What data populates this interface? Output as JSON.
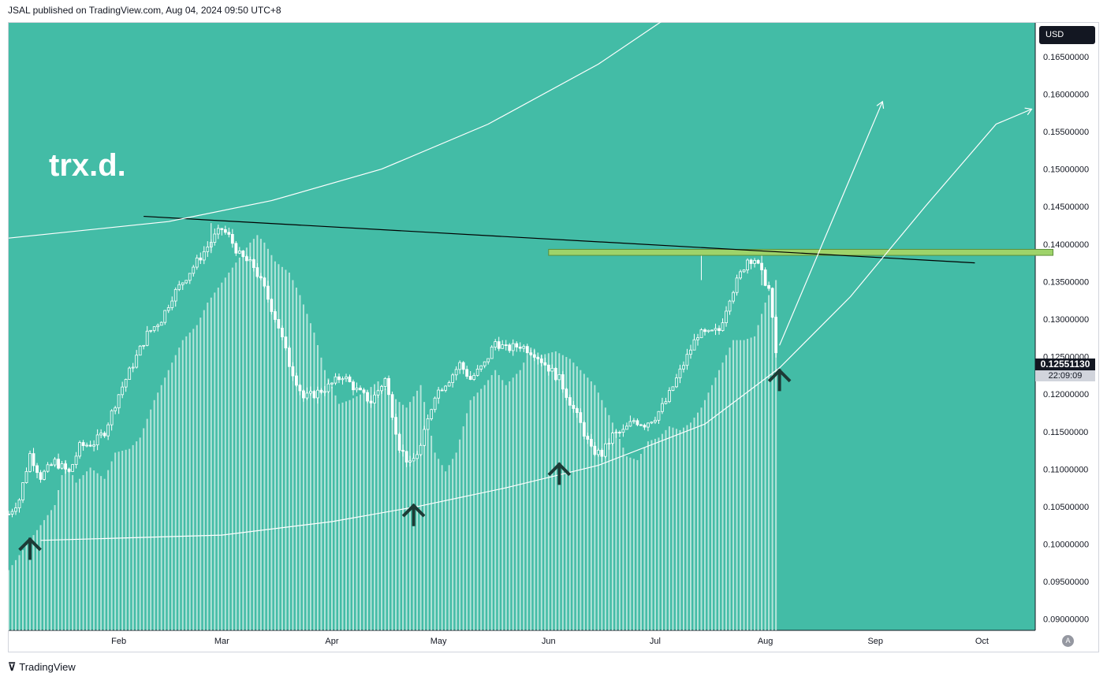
{
  "header": {
    "published": "JSAL published on TradingView.com, Aug 04, 2024 09:50 UTC+8"
  },
  "footer": {
    "brand": "TradingView",
    "logo": "tradingview-logo-icon"
  },
  "ticker_label": "trx.d.",
  "currency": "USD",
  "last_price": "0.12551130",
  "countdown": "22:09:09",
  "settings_icon": "A",
  "colors": {
    "background": "#43bca6",
    "candle": "#ffffff",
    "volume": "#e6f5f1",
    "arrow": "#1d3b36",
    "zone": "#9ed36a",
    "trendline": "#000000"
  },
  "chart_data": {
    "type": "candlestick",
    "title": "",
    "ylim": [
      0.0885,
      0.1695
    ],
    "x_range": [
      "2024-01-01",
      "2024-10-16"
    ],
    "x_ticks": [
      {
        "date": "2024-02-01",
        "label": "Feb"
      },
      {
        "date": "2024-03-01",
        "label": "Mar"
      },
      {
        "date": "2024-04-01",
        "label": "Apr"
      },
      {
        "date": "2024-05-01",
        "label": "May"
      },
      {
        "date": "2024-06-01",
        "label": "Jun"
      },
      {
        "date": "2024-07-01",
        "label": "Jul"
      },
      {
        "date": "2024-08-01",
        "label": "Aug"
      },
      {
        "date": "2024-09-01",
        "label": "Sep"
      },
      {
        "date": "2024-10-01",
        "label": "Oct"
      }
    ],
    "y_ticks": [
      "0.09000000",
      "0.09500000",
      "0.10000000",
      "0.10500000",
      "0.11000000",
      "0.11500000",
      "0.12000000",
      "0.12500000",
      "0.13000000",
      "0.13500000",
      "0.14000000",
      "0.14500000",
      "0.15000000",
      "0.15500000",
      "0.16000000",
      "0.16500000"
    ],
    "close_path": [
      [
        "2024-01-01",
        0.104
      ],
      [
        "2024-01-04",
        0.106
      ],
      [
        "2024-01-07",
        0.112
      ],
      [
        "2024-01-10",
        0.109
      ],
      [
        "2024-01-14",
        0.111
      ],
      [
        "2024-01-18",
        0.1095
      ],
      [
        "2024-01-21",
        0.113
      ],
      [
        "2024-01-25",
        0.1135
      ],
      [
        "2024-01-28",
        0.115
      ],
      [
        "2024-02-01",
        0.12
      ],
      [
        "2024-02-05",
        0.124
      ],
      [
        "2024-02-09",
        0.128
      ],
      [
        "2024-02-13",
        0.13
      ],
      [
        "2024-02-16",
        0.133
      ],
      [
        "2024-02-19",
        0.135
      ],
      [
        "2024-02-22",
        0.137
      ],
      [
        "2024-02-25",
        0.139
      ],
      [
        "2024-02-28",
        0.141
      ],
      [
        "2024-03-01",
        0.142
      ],
      [
        "2024-03-03",
        0.141
      ],
      [
        "2024-03-06",
        0.1385
      ],
      [
        "2024-03-10",
        0.137
      ],
      [
        "2024-03-13",
        0.134
      ],
      [
        "2024-03-17",
        0.129
      ],
      [
        "2024-03-20",
        0.124
      ],
      [
        "2024-03-24",
        0.1195
      ],
      [
        "2024-03-27",
        0.12
      ],
      [
        "2024-03-31",
        0.121
      ],
      [
        "2024-04-04",
        0.1225
      ],
      [
        "2024-04-08",
        0.1205
      ],
      [
        "2024-04-12",
        0.119
      ],
      [
        "2024-04-16",
        0.122
      ],
      [
        "2024-04-20",
        0.113
      ],
      [
        "2024-04-23",
        0.1105
      ],
      [
        "2024-04-26",
        0.113
      ],
      [
        "2024-04-30",
        0.12
      ],
      [
        "2024-05-04",
        0.122
      ],
      [
        "2024-05-07",
        0.124
      ],
      [
        "2024-05-10",
        0.122
      ],
      [
        "2024-05-14",
        0.124
      ],
      [
        "2024-05-17",
        0.127
      ],
      [
        "2024-05-20",
        0.126
      ],
      [
        "2024-05-24",
        0.1265
      ],
      [
        "2024-05-28",
        0.1255
      ],
      [
        "2024-05-31",
        0.124
      ],
      [
        "2024-06-04",
        0.122
      ],
      [
        "2024-06-07",
        0.119
      ],
      [
        "2024-06-10",
        0.116
      ],
      [
        "2024-06-13",
        0.1125
      ],
      [
        "2024-06-16",
        0.112
      ],
      [
        "2024-06-19",
        0.1145
      ],
      [
        "2024-06-22",
        0.115
      ],
      [
        "2024-06-25",
        0.1165
      ],
      [
        "2024-06-28",
        0.116
      ],
      [
        "2024-07-01",
        0.117
      ],
      [
        "2024-07-04",
        0.119
      ],
      [
        "2024-07-07",
        0.122
      ],
      [
        "2024-07-10",
        0.125
      ],
      [
        "2024-07-13",
        0.128
      ],
      [
        "2024-07-16",
        0.128
      ],
      [
        "2024-07-19",
        0.1285
      ],
      [
        "2024-07-22",
        0.133
      ],
      [
        "2024-07-25",
        0.136
      ],
      [
        "2024-07-27",
        0.138
      ],
      [
        "2024-07-29",
        0.138
      ],
      [
        "2024-07-31",
        0.136
      ],
      [
        "2024-08-02",
        0.134
      ],
      [
        "2024-08-04",
        0.1255
      ]
    ],
    "highest_wick": [
      [
        "2024-02-27",
        0.1428
      ],
      [
        "2024-07-14",
        0.1392
      ],
      [
        "2024-07-31",
        0.1385
      ]
    ],
    "volume_profile_note": "",
    "drawings": {
      "horizontal_zone": {
        "from": "2024-06-01",
        "to": "2024-10-21",
        "low": 0.1385,
        "high": 0.1393
      },
      "trendline": {
        "from": [
          "2024-02-08",
          0.1437
        ],
        "to": [
          "2024-09-29",
          0.1375
        ]
      },
      "upper_curve": [
        [
          "2024-01-01",
          0.1408
        ],
        [
          "2024-02-15",
          0.143
        ],
        [
          "2024-03-15",
          0.1458
        ],
        [
          "2024-04-15",
          0.15
        ],
        [
          "2024-05-15",
          0.156
        ],
        [
          "2024-06-15",
          0.164
        ],
        [
          "2024-07-10",
          0.172
        ]
      ],
      "lower_curve": [
        [
          "2024-01-10",
          0.1005
        ],
        [
          "2024-03-01",
          0.1012
        ],
        [
          "2024-04-01",
          0.103
        ],
        [
          "2024-04-25",
          0.105
        ],
        [
          "2024-05-20",
          0.1075
        ],
        [
          "2024-06-15",
          0.1105
        ],
        [
          "2024-07-15",
          0.116
        ],
        [
          "2024-08-05",
          0.1235
        ],
        [
          "2024-08-25",
          0.133
        ],
        [
          "2024-09-15",
          0.145
        ],
        [
          "2024-10-05",
          0.156
        ],
        [
          "2024-10-15",
          0.158
        ]
      ],
      "projection_arrow": {
        "from": [
          "2024-08-05",
          0.1265
        ],
        "to": [
          "2024-09-03",
          0.159
        ]
      },
      "support_arrows": [
        [
          "2024-01-07",
          0.1
        ],
        [
          "2024-04-24",
          0.1045
        ],
        [
          "2024-06-04",
          0.11
        ],
        [
          "2024-08-05",
          0.1225
        ]
      ]
    }
  }
}
